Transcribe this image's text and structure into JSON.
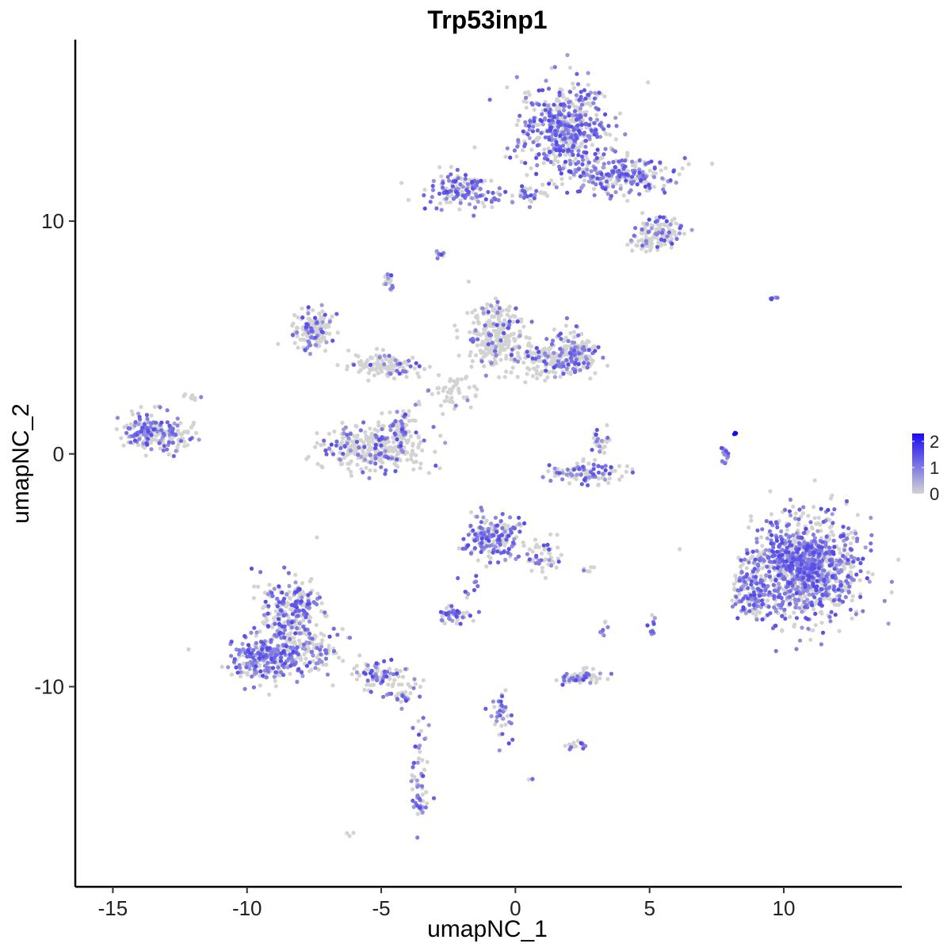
{
  "chart_data": {
    "type": "scatter",
    "title": "Trp53inp1",
    "xlabel": "umapNC_1",
    "ylabel": "umapNC_2",
    "xlim": [
      -16.4,
      14.4
    ],
    "ylim": [
      -18.6,
      17.8
    ],
    "xticks": [
      -15,
      -10,
      -5,
      0,
      5,
      10
    ],
    "xtick_labels": [
      "-15",
      "-10",
      "-5",
      "0",
      "5",
      "10"
    ],
    "yticks": [
      -10,
      0,
      10
    ],
    "ytick_labels": [
      "-10",
      "0",
      "10"
    ],
    "grid": false,
    "legend": {
      "type": "colorbar",
      "placement": "right",
      "ticks": [
        0,
        1,
        2
      ],
      "tick_labels": [
        "0",
        "1",
        "2"
      ],
      "range": [
        0,
        2.3
      ],
      "low_color": "#D3D3D3",
      "high_color": "#1A0BF5"
    },
    "point_color_low": "#D3D3D3",
    "point_color_high": "#1A0BF5",
    "clusters": [
      {
        "cx": 1.8,
        "cy": 14.0,
        "sx": 1.1,
        "sy": 1.3,
        "n": 520,
        "expr": 0.55
      },
      {
        "cx": 3.9,
        "cy": 12.0,
        "sx": 1.3,
        "sy": 0.5,
        "n": 240,
        "expr": 0.55
      },
      {
        "cx": -2.0,
        "cy": 11.3,
        "sx": 0.9,
        "sy": 0.5,
        "n": 150,
        "expr": 0.55
      },
      {
        "cx": 0.5,
        "cy": 11.2,
        "sx": 0.6,
        "sy": 0.3,
        "n": 40,
        "expr": 0.5
      },
      {
        "cx": 5.4,
        "cy": 9.6,
        "sx": 0.6,
        "sy": 0.4,
        "n": 90,
        "expr": 0.3
      },
      {
        "cx": 5.0,
        "cy": 9.0,
        "sx": 0.5,
        "sy": 0.3,
        "n": 40,
        "expr": 0.2
      },
      {
        "cx": -2.9,
        "cy": 8.5,
        "sx": 0.2,
        "sy": 0.15,
        "n": 10,
        "expr": 0.4
      },
      {
        "cx": -4.7,
        "cy": 7.3,
        "sx": 0.15,
        "sy": 0.2,
        "n": 15,
        "expr": 0.5
      },
      {
        "cx": -7.6,
        "cy": 5.4,
        "sx": 0.5,
        "sy": 0.6,
        "n": 150,
        "expr": 0.25
      },
      {
        "cx": -4.8,
        "cy": 3.8,
        "sx": 0.9,
        "sy": 0.4,
        "n": 130,
        "expr": 0.1
      },
      {
        "cx": -0.7,
        "cy": 5.0,
        "sx": 0.7,
        "sy": 0.9,
        "n": 280,
        "expr": 0.15
      },
      {
        "cx": 1.2,
        "cy": 4.0,
        "sx": 0.9,
        "sy": 0.5,
        "n": 160,
        "expr": 0.2
      },
      {
        "cx": 2.3,
        "cy": 4.4,
        "sx": 0.5,
        "sy": 0.6,
        "n": 140,
        "expr": 0.35
      },
      {
        "cx": -2.2,
        "cy": 2.6,
        "sx": 0.6,
        "sy": 0.5,
        "n": 50,
        "expr": 0.08
      },
      {
        "cx": -13.8,
        "cy": 1.0,
        "sx": 0.6,
        "sy": 0.5,
        "n": 140,
        "expr": 0.45
      },
      {
        "cx": -12.7,
        "cy": 0.8,
        "sx": 0.5,
        "sy": 0.5,
        "n": 70,
        "expr": 0.3
      },
      {
        "cx": -12.0,
        "cy": 2.5,
        "sx": 0.3,
        "sy": 0.2,
        "n": 10,
        "expr": 0.2
      },
      {
        "cx": -5.3,
        "cy": 0.2,
        "sx": 1.2,
        "sy": 0.6,
        "n": 330,
        "expr": 0.2
      },
      {
        "cx": -4.3,
        "cy": 1.2,
        "sx": 0.4,
        "sy": 0.5,
        "n": 60,
        "expr": 0.3
      },
      {
        "cx": 2.7,
        "cy": -0.8,
        "sx": 0.9,
        "sy": 0.3,
        "n": 110,
        "expr": 0.45
      },
      {
        "cx": 3.2,
        "cy": 0.7,
        "sx": 0.3,
        "sy": 0.4,
        "n": 25,
        "expr": 0.35
      },
      {
        "cx": 7.8,
        "cy": -0.1,
        "sx": 0.1,
        "sy": 0.3,
        "n": 14,
        "expr": 0.8
      },
      {
        "cx": 8.2,
        "cy": 0.9,
        "sx": 0.05,
        "sy": 0.05,
        "n": 4,
        "expr": 2.3
      },
      {
        "cx": 9.6,
        "cy": 6.7,
        "sx": 0.15,
        "sy": 0.05,
        "n": 5,
        "expr": 0.9
      },
      {
        "cx": 10.8,
        "cy": -4.9,
        "sx": 1.3,
        "sy": 1.4,
        "n": 1150,
        "expr": 0.5
      },
      {
        "cx": 8.8,
        "cy": -6.0,
        "sx": 0.5,
        "sy": 0.7,
        "n": 120,
        "expr": 0.55
      },
      {
        "cx": -0.9,
        "cy": -3.6,
        "sx": 0.7,
        "sy": 0.6,
        "n": 200,
        "expr": 0.45
      },
      {
        "cx": 1.0,
        "cy": -4.5,
        "sx": 0.5,
        "sy": 0.5,
        "n": 50,
        "expr": 0.3
      },
      {
        "cx": -8.4,
        "cy": -6.8,
        "sx": 0.7,
        "sy": 1.0,
        "n": 260,
        "expr": 0.5
      },
      {
        "cx": -9.3,
        "cy": -8.8,
        "sx": 0.8,
        "sy": 0.7,
        "n": 260,
        "expr": 0.5
      },
      {
        "cx": -7.5,
        "cy": -8.5,
        "sx": 0.7,
        "sy": 0.6,
        "n": 110,
        "expr": 0.4
      },
      {
        "cx": -5.0,
        "cy": -9.6,
        "sx": 0.8,
        "sy": 0.4,
        "n": 90,
        "expr": 0.35
      },
      {
        "cx": -4.2,
        "cy": -10.4,
        "sx": 0.4,
        "sy": 0.3,
        "n": 30,
        "expr": 0.45
      },
      {
        "cx": -3.6,
        "cy": -13.5,
        "sx": 0.2,
        "sy": 1.2,
        "n": 40,
        "expr": 0.5
      },
      {
        "cx": -3.6,
        "cy": -15.1,
        "sx": 0.3,
        "sy": 0.3,
        "n": 20,
        "expr": 0.6
      },
      {
        "cx": -2.3,
        "cy": -6.9,
        "sx": 0.5,
        "sy": 0.2,
        "n": 50,
        "expr": 0.45
      },
      {
        "cx": 2.5,
        "cy": -9.6,
        "sx": 0.6,
        "sy": 0.2,
        "n": 70,
        "expr": 0.4
      },
      {
        "cx": -0.5,
        "cy": -11.0,
        "sx": 0.3,
        "sy": 1.0,
        "n": 35,
        "expr": 0.6
      },
      {
        "cx": 2.2,
        "cy": -12.5,
        "sx": 0.3,
        "sy": 0.15,
        "n": 15,
        "expr": 0.4
      },
      {
        "cx": 5.1,
        "cy": -7.4,
        "sx": 0.1,
        "sy": 0.3,
        "n": 10,
        "expr": 0.6
      },
      {
        "cx": 3.3,
        "cy": -7.6,
        "sx": 0.1,
        "sy": 0.3,
        "n": 8,
        "expr": 0.4
      },
      {
        "cx": 2.8,
        "cy": -5.0,
        "sx": 0.2,
        "sy": 0.1,
        "n": 6,
        "expr": 0.3
      },
      {
        "cx": 0.6,
        "cy": -14.0,
        "sx": 0.1,
        "sy": 0.05,
        "n": 3,
        "expr": 0.2
      },
      {
        "cx": -6.1,
        "cy": -16.3,
        "sx": 0.1,
        "sy": 0.05,
        "n": 3,
        "expr": 0.4
      },
      {
        "cx": -1.6,
        "cy": -5.8,
        "sx": 0.3,
        "sy": 0.4,
        "n": 10,
        "expr": 0.4
      }
    ]
  }
}
